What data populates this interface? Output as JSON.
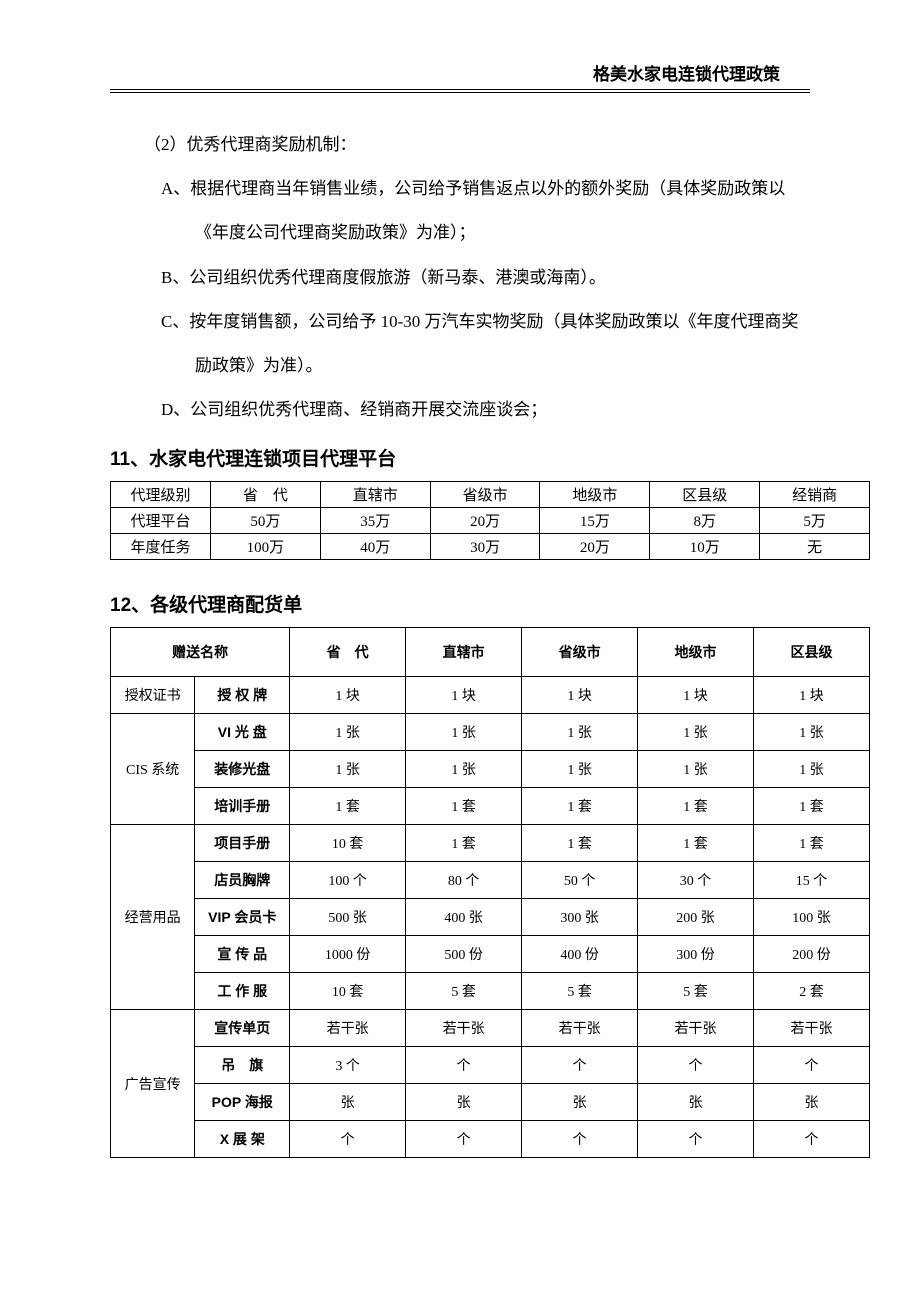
{
  "header": {
    "title": "格美水家电连锁代理政策"
  },
  "intro": {
    "lead": "（2）优秀代理商奖励机制：",
    "a": "A、根据代理商当年销售业绩，公司给予销售返点以外的额外奖励（具体奖励政策以《年度公司代理商奖励政策》为准）；",
    "b": "B、公司组织优秀代理商度假旅游（新马泰、港澳或海南）。",
    "c": "C、按年度销售额，公司给予 10-30 万汽车实物奖励（具体奖励政策以《年度代理商奖励政策》为准）。",
    "d": "D、公司组织优秀代理商、经销商开展交流座谈会；"
  },
  "section11": {
    "heading": "11、水家电代理连锁项目代理平台",
    "cols": [
      "省　代",
      "直辖市",
      "省级市",
      "地级市",
      "区县级",
      "经销商"
    ],
    "rows": [
      {
        "label": "代理级别"
      },
      {
        "label": "代理平台",
        "vals": [
          "50万",
          "35万",
          "20万",
          "15万",
          "8万",
          "5万"
        ]
      },
      {
        "label": "年度任务",
        "vals": [
          "100万",
          "40万",
          "30万",
          "20万",
          "10万",
          "无"
        ]
      }
    ]
  },
  "section12": {
    "heading": "12、各级代理商配货单",
    "header": [
      "赠送名称",
      "省　代",
      "直辖市",
      "省级市",
      "地级市",
      "区县级"
    ],
    "groups": [
      {
        "group": "授权证书",
        "items": [
          {
            "name": "授 权 牌",
            "vals": [
              "1 块",
              "1 块",
              "1 块",
              "1 块",
              "1 块"
            ]
          }
        ]
      },
      {
        "group": "CIS 系统",
        "items": [
          {
            "name": "VI 光 盘",
            "vals": [
              "1 张",
              "1 张",
              "1 张",
              "1 张",
              "1 张"
            ]
          },
          {
            "name": "装修光盘",
            "vals": [
              "1 张",
              "1 张",
              "1 张",
              "1 张",
              "1 张"
            ]
          },
          {
            "name": "培训手册",
            "vals": [
              "1 套",
              "1 套",
              "1 套",
              "1 套",
              "1 套"
            ]
          }
        ]
      },
      {
        "group": "",
        "items": [
          {
            "name": "项目手册",
            "vals": [
              "10 套",
              "1 套",
              "1 套",
              "1 套",
              "1 套"
            ]
          },
          {
            "name": "店员胸牌",
            "vals": [
              "100 个",
              "80 个",
              "50 个",
              "30 个",
              "15 个"
            ]
          }
        ]
      },
      {
        "group": "经营用品",
        "items": [
          {
            "name": "VIP 会员卡",
            "vals": [
              "500 张",
              "400 张",
              "300 张",
              "200 张",
              "100 张"
            ]
          },
          {
            "name": "宣 传 品",
            "vals": [
              "1000 份",
              "500 份",
              "400 份",
              "300 份",
              "200 份"
            ]
          }
        ]
      },
      {
        "group": "",
        "items": [
          {
            "name": "工 作 服",
            "vals": [
              "10 套",
              "5 套",
              "5 套",
              "5 套",
              "2 套"
            ]
          },
          {
            "name": "宣传单页",
            "vals": [
              "若干张",
              "若干张",
              "若干张",
              "若干张",
              "若干张"
            ]
          }
        ]
      },
      {
        "group": "广告宣传",
        "items": [
          {
            "name": "吊　旗",
            "vals": [
              "3 个",
              "个",
              "个",
              "个",
              "个"
            ]
          },
          {
            "name": "POP 海报",
            "vals": [
              "张",
              "张",
              "张",
              "张",
              "张"
            ]
          },
          {
            "name": "X 展 架",
            "vals": [
              "个",
              "个",
              "个",
              "个",
              "个"
            ]
          }
        ]
      }
    ]
  }
}
